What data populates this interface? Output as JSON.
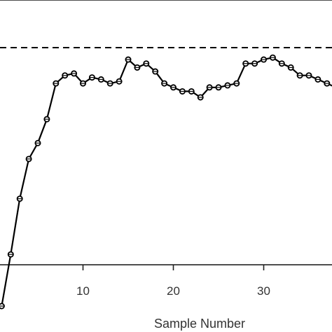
{
  "chart_data": {
    "type": "line",
    "title": "",
    "xlabel": "Sample Number",
    "ylabel": "",
    "x_ticks": [
      "10",
      "20",
      "30"
    ],
    "reference_line": {
      "style": "dashed",
      "y": 0.9
    },
    "series": [
      {
        "x": [
          1,
          2,
          3,
          4,
          5,
          6,
          7,
          8,
          9,
          10,
          11,
          12,
          13,
          14,
          15,
          16,
          17,
          18,
          19,
          20,
          21,
          22,
          23,
          24,
          25,
          26,
          27,
          28,
          29,
          30,
          31,
          32,
          33,
          34,
          35,
          36,
          37,
          38
        ],
        "y": [
          0.25,
          0.38,
          0.52,
          0.62,
          0.66,
          0.72,
          0.81,
          0.83,
          0.835,
          0.81,
          0.825,
          0.82,
          0.81,
          0.815,
          0.87,
          0.85,
          0.86,
          0.84,
          0.81,
          0.8,
          0.79,
          0.79,
          0.775,
          0.8,
          0.8,
          0.805,
          0.81,
          0.86,
          0.86,
          0.87,
          0.875,
          0.86,
          0.85,
          0.83,
          0.83,
          0.82,
          0.81,
          0.8
        ]
      }
    ],
    "colors": {
      "line": "#000000",
      "marker": "#000000",
      "axis": "#222222",
      "text": "#333333"
    }
  }
}
